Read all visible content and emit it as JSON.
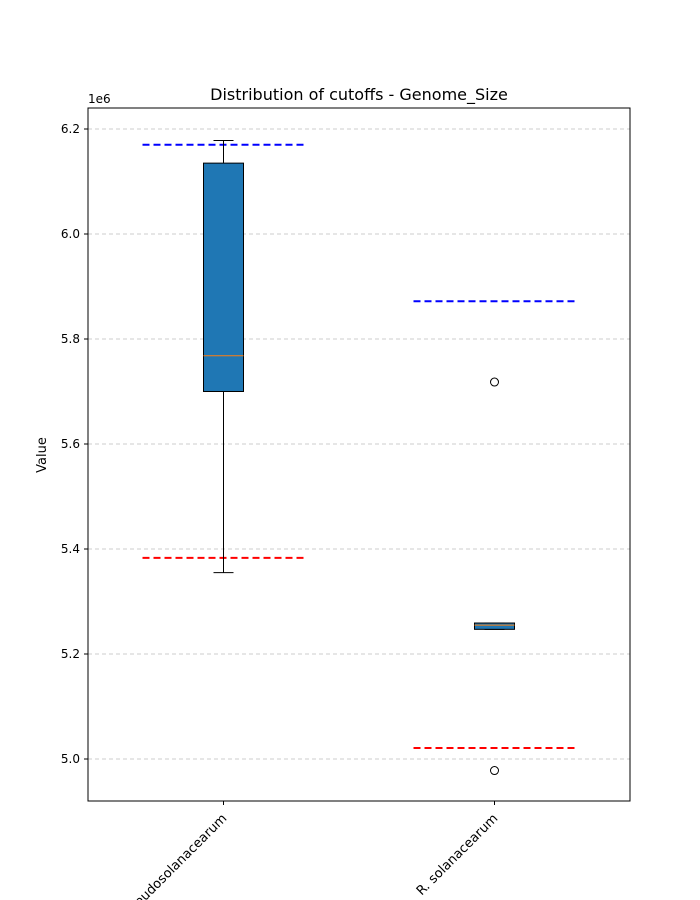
{
  "chart_data": {
    "type": "box",
    "title": "Distribution of cutoffs - Genome_Size",
    "ylabel": "Value",
    "xlabel": "",
    "y_offset_label": "1e6",
    "y_scale": 1000000,
    "ylim": [
      4920000,
      6240000
    ],
    "grid": "y-dashed",
    "yticks": [
      5000000,
      5200000,
      5400000,
      5600000,
      5800000,
      6000000,
      6200000
    ],
    "ytick_labels": [
      "5.0",
      "5.2",
      "5.4",
      "5.6",
      "5.8",
      "6.0",
      "6.2"
    ],
    "categories": [
      "R. pseudosolanacearum",
      "R. solanacearum"
    ],
    "boxes": [
      {
        "whisker_low": 5355000,
        "q1": 5700000,
        "median": 5768000,
        "q3": 6135000,
        "whisker_high": 6178000,
        "outliers": [],
        "upper_cutoff": 6170000,
        "lower_cutoff": 5383000
      },
      {
        "whisker_low": 5247000,
        "q1": 5247000,
        "median": 5255000,
        "q3": 5259000,
        "whisker_high": 5259000,
        "outliers": [
          5718000,
          4978000
        ],
        "upper_cutoff": 5872000,
        "lower_cutoff": 5021000
      }
    ],
    "colors": {
      "box_fill": "#1f77b4",
      "median": "#ff7f0e",
      "upper_cutoff": "#0000ff",
      "lower_cutoff": "#ff0000",
      "grid": "#cccccc"
    }
  }
}
